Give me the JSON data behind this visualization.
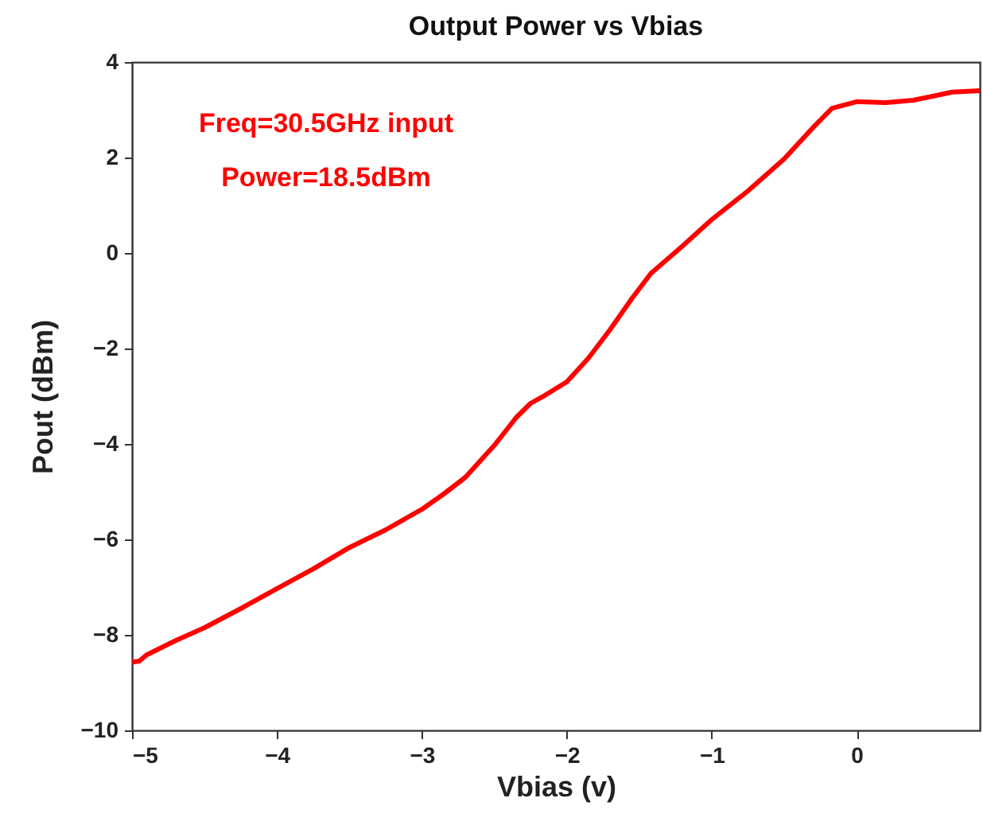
{
  "chart_data": {
    "type": "line",
    "title": "Output Power vs Vbias",
    "xlabel": "Vbias (v)",
    "ylabel": "Pout (dBm)",
    "annotations": [
      "Freq=30.5GHz input",
      "Power=18.5dBm"
    ],
    "x": [
      -5,
      -4.95,
      -4.9,
      -4.7,
      -4.5,
      -4.25,
      -4,
      -3.75,
      -3.5,
      -3.25,
      -3,
      -2.85,
      -2.7,
      -2.5,
      -2.35,
      -2.25,
      -2.15,
      -2.0,
      -1.85,
      -1.7,
      -1.55,
      -1.42,
      -1.2,
      -1.0,
      -0.75,
      -0.5,
      -0.3,
      -0.17,
      0,
      0.2,
      0.39,
      0.55,
      0.66,
      0.85
    ],
    "series": [
      {
        "color": "#ff0000",
        "values": [
          -8.57,
          -8.55,
          -8.42,
          -8.12,
          -7.85,
          -7.45,
          -7.03,
          -6.62,
          -6.17,
          -5.8,
          -5.37,
          -5.05,
          -4.7,
          -4.03,
          -3.45,
          -3.15,
          -2.98,
          -2.7,
          -2.2,
          -1.6,
          -0.95,
          -0.43,
          0.15,
          0.7,
          1.3,
          1.97,
          2.63,
          3.03,
          3.17,
          3.15,
          3.2,
          3.3,
          3.37,
          3.4
        ]
      }
    ],
    "xlim": [
      -5,
      0.85
    ],
    "ylim": [
      -10,
      4
    ],
    "xticks": [
      -5,
      -4,
      -3,
      -2,
      -1,
      0
    ],
    "yticks": [
      -10,
      -8,
      -6,
      -4,
      -2,
      0,
      2,
      4
    ],
    "grid": false,
    "marker": "none",
    "line_style": "solid"
  }
}
